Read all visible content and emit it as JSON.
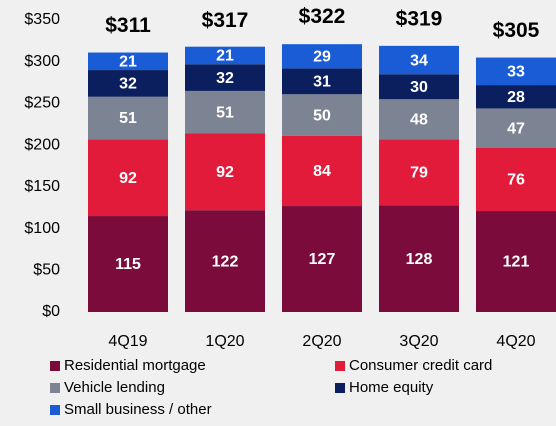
{
  "chart_data": {
    "type": "stacked_bar",
    "categories": [
      "4Q19",
      "1Q20",
      "2Q20",
      "3Q20",
      "4Q20"
    ],
    "series": [
      {
        "name": "Residential mortgage",
        "color": "#7a0b3b",
        "values": [
          115,
          122,
          127,
          128,
          121
        ]
      },
      {
        "name": "Consumer credit card",
        "color": "#e31b3a",
        "values": [
          92,
          92,
          84,
          79,
          76
        ]
      },
      {
        "name": "Vehicle lending",
        "color": "#7c8494",
        "values": [
          51,
          51,
          50,
          48,
          47
        ]
      },
      {
        "name": "Home equity",
        "color": "#0b1f5e",
        "values": [
          32,
          32,
          31,
          30,
          28
        ]
      },
      {
        "name": "Small business / other",
        "color": "#1a5bd6",
        "values": [
          21,
          21,
          29,
          34,
          33
        ]
      }
    ],
    "totals": {
      "values": [
        311,
        317,
        322,
        319,
        305
      ],
      "value_labels": [
        "$311",
        "$317",
        "$322",
        "$319",
        "$305"
      ]
    },
    "ylim": [
      0,
      350
    ],
    "yticks": [
      {
        "value": 0,
        "label": "$0"
      },
      {
        "value": 50,
        "label": "$50"
      },
      {
        "value": 100,
        "label": "$100"
      },
      {
        "value": 150,
        "label": "$150"
      },
      {
        "value": 200,
        "label": "$200"
      },
      {
        "value": 250,
        "label": "$250"
      },
      {
        "value": 300,
        "label": "$300"
      },
      {
        "value": 350,
        "label": "$350"
      }
    ],
    "legend": "bottom"
  }
}
